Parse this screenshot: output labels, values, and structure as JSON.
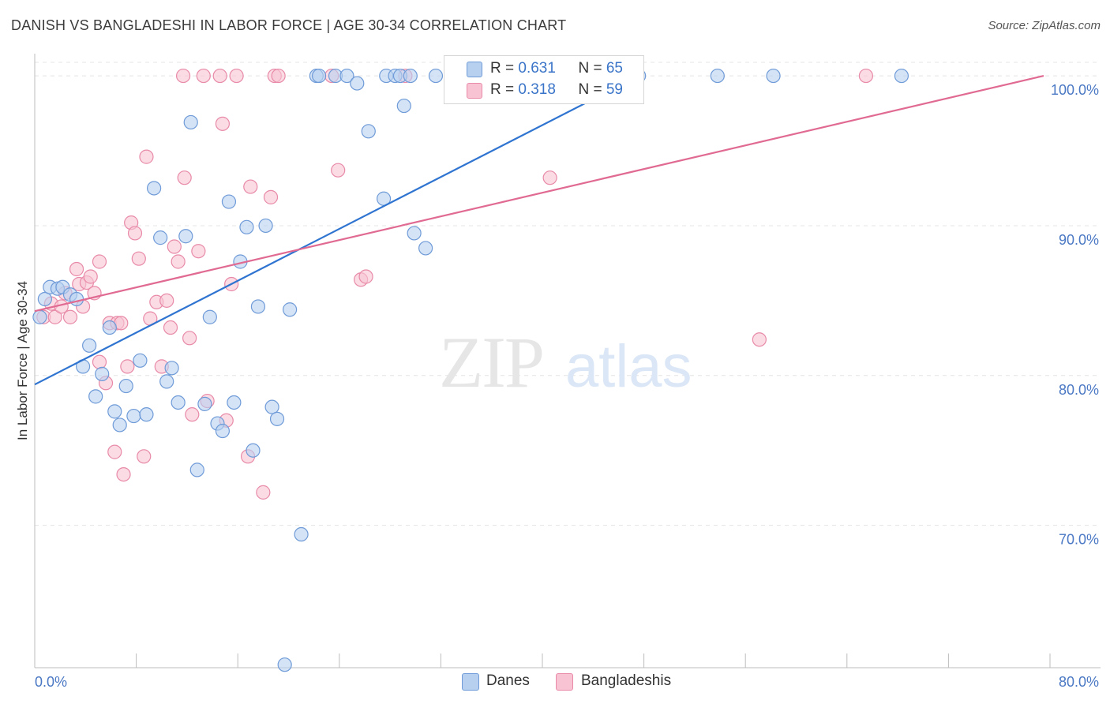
{
  "title": "DANISH VS BANGLADESHI IN LABOR FORCE | AGE 30-34 CORRELATION CHART",
  "source": "Source: ZipAtlas.com",
  "watermark": {
    "zip": "ZIP",
    "atlas": "atlas"
  },
  "legend": {
    "danes": {
      "r_label": "R = ",
      "r_value": "0.631",
      "n_label": "N = ",
      "n_value": "65"
    },
    "bangladeshis": {
      "r_label": "R = ",
      "r_value": "0.318",
      "n_label": "N = ",
      "n_value": "59"
    }
  },
  "bottom_legend": {
    "danes": "Danes",
    "bangladeshis": "Bangladeshis"
  },
  "colors": {
    "danes_fill": "#b8d0f0",
    "danes_stroke": "#6f9bd8",
    "danes_line": "#2f74d0",
    "bangla_fill": "#f8c4d4",
    "bangla_stroke": "#e88aa8",
    "bangla_line": "#e06a92",
    "tick_label": "#4a78c4",
    "grid": "#e4e4e4"
  },
  "chart_data": {
    "type": "scatter",
    "title": "DANISH VS BANGLADESHI IN LABOR FORCE | AGE 30-34 CORRELATION CHART",
    "xlabel": "",
    "ylabel": "In Labor Force | Age 30-34",
    "xlim": [
      0,
      80
    ],
    "ylim": [
      60.5,
      100.9
    ],
    "x_tick_labels": [
      "0.0%",
      "80.0%"
    ],
    "y_ticks": [
      70,
      80,
      90,
      100
    ],
    "y_tick_labels": [
      "70.0%",
      "80.0%",
      "90.0%",
      "100.0%"
    ],
    "grid": true,
    "legend_placement": "top-center",
    "series": [
      {
        "name": "Danes",
        "trend": {
          "x": [
            0,
            47.6
          ],
          "y": [
            79.4,
            100
          ]
        },
        "points": [
          [
            0.4,
            83.9
          ],
          [
            0.8,
            85.1
          ],
          [
            1.2,
            85.9
          ],
          [
            1.8,
            85.8
          ],
          [
            2.2,
            85.9
          ],
          [
            2.8,
            85.4
          ],
          [
            3.3,
            85.1
          ],
          [
            3.8,
            80.6
          ],
          [
            4.3,
            82.0
          ],
          [
            4.8,
            78.6
          ],
          [
            5.3,
            80.1
          ],
          [
            5.9,
            83.2
          ],
          [
            6.3,
            77.6
          ],
          [
            6.7,
            76.7
          ],
          [
            7.2,
            79.3
          ],
          [
            7.8,
            77.3
          ],
          [
            8.3,
            81.0
          ],
          [
            8.8,
            77.4
          ],
          [
            9.4,
            92.5
          ],
          [
            9.9,
            89.2
          ],
          [
            10.4,
            79.6
          ],
          [
            10.8,
            80.5
          ],
          [
            11.3,
            78.2
          ],
          [
            11.9,
            89.3
          ],
          [
            12.3,
            96.9
          ],
          [
            12.8,
            73.7
          ],
          [
            13.4,
            78.1
          ],
          [
            13.8,
            83.9
          ],
          [
            14.4,
            76.8
          ],
          [
            14.8,
            76.3
          ],
          [
            15.3,
            91.6
          ],
          [
            15.7,
            78.2
          ],
          [
            16.2,
            87.6
          ],
          [
            16.7,
            89.9
          ],
          [
            17.2,
            75.0
          ],
          [
            17.6,
            84.6
          ],
          [
            18.2,
            90.0
          ],
          [
            18.7,
            77.9
          ],
          [
            19.1,
            77.1
          ],
          [
            19.7,
            60.7
          ],
          [
            20.1,
            84.4
          ],
          [
            21.0,
            69.4
          ],
          [
            22.2,
            100.0
          ],
          [
            22.4,
            100.0
          ],
          [
            23.7,
            100.0
          ],
          [
            24.6,
            100.0
          ],
          [
            25.4,
            99.5
          ],
          [
            26.3,
            96.3
          ],
          [
            27.5,
            91.8
          ],
          [
            27.7,
            100.0
          ],
          [
            28.4,
            100.0
          ],
          [
            28.8,
            100.0
          ],
          [
            29.1,
            98.0
          ],
          [
            29.6,
            100.0
          ],
          [
            29.9,
            89.5
          ],
          [
            30.8,
            88.5
          ],
          [
            31.6,
            100.0
          ],
          [
            34.6,
            100.0
          ],
          [
            35.2,
            100.0
          ],
          [
            38.3,
            100.0
          ],
          [
            41.3,
            100.0
          ],
          [
            47.6,
            100.0
          ],
          [
            53.8,
            100.0
          ],
          [
            58.2,
            100.0
          ],
          [
            68.3,
            100.0
          ]
        ]
      },
      {
        "name": "Bangladeshis",
        "trend": {
          "x": [
            0,
            79.5
          ],
          "y": [
            84.3,
            100
          ]
        },
        "points": [
          [
            0.7,
            83.9
          ],
          [
            1.3,
            84.8
          ],
          [
            1.6,
            83.9
          ],
          [
            2.1,
            84.6
          ],
          [
            2.4,
            85.5
          ],
          [
            2.8,
            83.9
          ],
          [
            3.3,
            87.1
          ],
          [
            3.5,
            86.1
          ],
          [
            3.8,
            84.6
          ],
          [
            4.1,
            86.2
          ],
          [
            4.4,
            86.6
          ],
          [
            4.7,
            85.5
          ],
          [
            5.1,
            87.6
          ],
          [
            5.1,
            80.9
          ],
          [
            5.6,
            79.5
          ],
          [
            5.9,
            83.5
          ],
          [
            6.3,
            74.9
          ],
          [
            6.5,
            83.5
          ],
          [
            6.8,
            83.5
          ],
          [
            7.0,
            73.4
          ],
          [
            7.3,
            80.6
          ],
          [
            7.6,
            90.2
          ],
          [
            7.9,
            89.5
          ],
          [
            8.2,
            87.8
          ],
          [
            8.6,
            74.6
          ],
          [
            8.8,
            94.6
          ],
          [
            9.1,
            83.8
          ],
          [
            9.6,
            84.9
          ],
          [
            10.0,
            80.6
          ],
          [
            10.4,
            85.0
          ],
          [
            10.7,
            83.2
          ],
          [
            11.0,
            88.6
          ],
          [
            11.3,
            87.6
          ],
          [
            11.8,
            93.2
          ],
          [
            12.2,
            82.5
          ],
          [
            12.4,
            77.4
          ],
          [
            12.9,
            88.3
          ],
          [
            13.6,
            78.3
          ],
          [
            14.8,
            96.8
          ],
          [
            15.1,
            77.0
          ],
          [
            15.5,
            86.1
          ],
          [
            16.8,
            74.6
          ],
          [
            17.0,
            92.6
          ],
          [
            18.0,
            72.2
          ],
          [
            18.6,
            91.9
          ],
          [
            18.9,
            100.0
          ],
          [
            19.2,
            100.0
          ],
          [
            23.4,
            100.0
          ],
          [
            23.9,
            93.7
          ],
          [
            25.7,
            86.4
          ],
          [
            26.1,
            86.6
          ],
          [
            29.2,
            100.0
          ],
          [
            40.6,
            93.2
          ],
          [
            57.1,
            82.4
          ],
          [
            13.3,
            100.0
          ],
          [
            14.6,
            100.0
          ],
          [
            11.7,
            100.0
          ],
          [
            15.9,
            100.0
          ],
          [
            65.5,
            100.0
          ]
        ]
      }
    ]
  }
}
